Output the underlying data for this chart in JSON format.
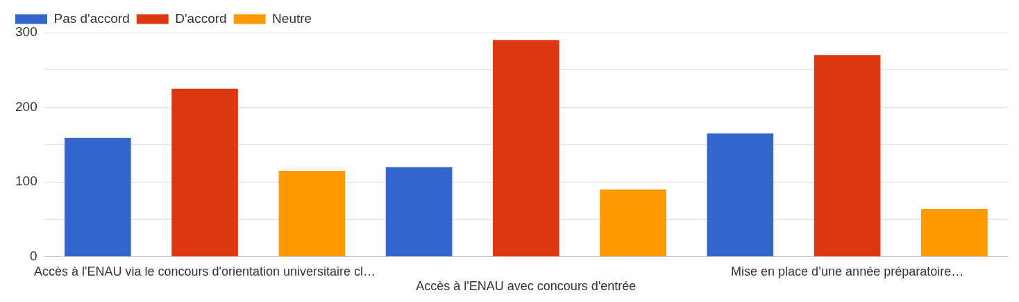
{
  "chart_data": {
    "type": "bar",
    "categories": [
      "Accès à l'ENAU via le concours d'orientation universitaire cl…",
      "Accès à l'ENAU avec concours d'entrée",
      "Mise en place d’une année préparatoire…"
    ],
    "series": [
      {
        "name": "Pas d'accord",
        "color": "#3366cc",
        "values": [
          159,
          120,
          165
        ]
      },
      {
        "name": "D'accord",
        "color": "#dc3912",
        "values": [
          225,
          290,
          270
        ]
      },
      {
        "name": "Neutre",
        "color": "#ff9900",
        "values": [
          115,
          90,
          64
        ]
      }
    ],
    "ylim": [
      0,
      300
    ],
    "yticks": [
      0,
      {
        "value": 50,
        "label": null
      },
      100,
      {
        "value": 150,
        "label": null
      },
      200,
      {
        "value": 250,
        "label": null
      },
      300
    ],
    "grid": "y",
    "legend": "top left"
  }
}
